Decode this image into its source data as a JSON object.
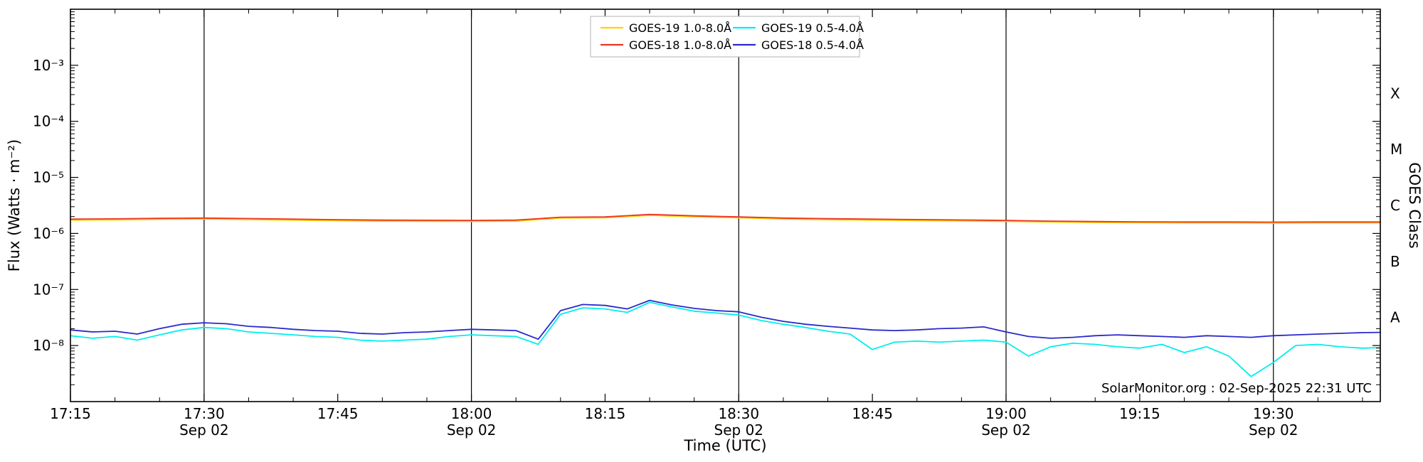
{
  "colors": {
    "background": "#ffffff",
    "axis": "#000000",
    "day_grid": "#000000",
    "legend_border": "#b3b3b3",
    "goes19_long": "#ffd200",
    "goes18_long": "#ee3322",
    "goes19_short": "#00eeee",
    "goes18_short": "#2929cc"
  },
  "chart_data": {
    "type": "line",
    "title": "",
    "xlabel": "Time (UTC)",
    "ylabel": "Flux (Watts · m⁻²)",
    "ylabel_right": "GOES Class",
    "annotation": "SolarMonitor.org : 02-Sep-2025 22:31 UTC",
    "x_unit": "minutes after 17:15 UTC",
    "xlim_minutes": [
      0,
      147
    ],
    "x_minor_step_min": 5,
    "ylim": [
      1e-09,
      0.01
    ],
    "yscale": "log",
    "grid": "vertical-day-lines-only",
    "legend_position": "top-center",
    "x_ticks": [
      {
        "min": 0,
        "label": "17:15",
        "grid": false
      },
      {
        "min": 15,
        "label": "17:30",
        "grid": true,
        "day": "Sep 02"
      },
      {
        "min": 30,
        "label": "17:45",
        "grid": false
      },
      {
        "min": 45,
        "label": "18:00",
        "grid": true,
        "day": "Sep 02"
      },
      {
        "min": 60,
        "label": "18:15",
        "grid": false
      },
      {
        "min": 75,
        "label": "18:30",
        "grid": true,
        "day": "Sep 02"
      },
      {
        "min": 90,
        "label": "18:45",
        "grid": false
      },
      {
        "min": 105,
        "label": "19:00",
        "grid": true,
        "day": "Sep 02"
      },
      {
        "min": 120,
        "label": "19:15",
        "grid": false
      },
      {
        "min": 135,
        "label": "19:30",
        "grid": true,
        "day": "Sep 02"
      }
    ],
    "y_ticks": [
      {
        "value": 0.001,
        "label": "10⁻³"
      },
      {
        "value": 0.0001,
        "label": "10⁻⁴"
      },
      {
        "value": 1e-05,
        "label": "10⁻⁵"
      },
      {
        "value": 1e-06,
        "label": "10⁻⁶"
      },
      {
        "value": 1e-07,
        "label": "10⁻⁷"
      },
      {
        "value": 1e-08,
        "label": "10⁻⁸"
      }
    ],
    "goes_class_labels": [
      {
        "label": "X",
        "value": 0.000316
      },
      {
        "label": "M",
        "value": 3.16e-05
      },
      {
        "label": "C",
        "value": 3.16e-06
      },
      {
        "label": "B",
        "value": 3.16e-07
      },
      {
        "label": "A",
        "value": 3.16e-08
      }
    ],
    "series": [
      {
        "name": "GOES-19 1.0-8.0Å",
        "color": "#ffd200",
        "x": [
          0,
          5,
          10,
          15,
          20,
          25,
          30,
          35,
          40,
          45,
          50,
          55,
          60,
          65,
          70,
          75,
          80,
          85,
          90,
          95,
          100,
          105,
          110,
          115,
          120,
          125,
          130,
          135,
          140,
          145,
          147
        ],
        "y": [
          1.73e-06,
          1.75e-06,
          1.79e-06,
          1.81e-06,
          1.77e-06,
          1.73e-06,
          1.69e-06,
          1.66e-06,
          1.65e-06,
          1.64e-06,
          1.66e-06,
          1.88e-06,
          1.9e-06,
          2.1e-06,
          1.98e-06,
          1.9e-06,
          1.81e-06,
          1.76e-06,
          1.73e-06,
          1.7e-06,
          1.67e-06,
          1.64e-06,
          1.6e-06,
          1.57e-06,
          1.55e-06,
          1.54e-06,
          1.54e-06,
          1.53e-06,
          1.54e-06,
          1.54e-06,
          1.54e-06
        ]
      },
      {
        "name": "GOES-18 1.0-8.0Å",
        "color": "#ee3322",
        "x": [
          0,
          5,
          10,
          15,
          20,
          25,
          30,
          35,
          40,
          45,
          50,
          55,
          60,
          65,
          70,
          75,
          80,
          85,
          90,
          95,
          100,
          105,
          110,
          115,
          120,
          125,
          130,
          135,
          140,
          145,
          147
        ],
        "y": [
          1.8e-06,
          1.82e-06,
          1.86e-06,
          1.88e-06,
          1.84e-06,
          1.8e-06,
          1.76e-06,
          1.73e-06,
          1.72e-06,
          1.71e-06,
          1.73e-06,
          1.95e-06,
          1.97e-06,
          2.18e-06,
          2.06e-06,
          1.97e-06,
          1.88e-06,
          1.83e-06,
          1.8e-06,
          1.77e-06,
          1.74e-06,
          1.71e-06,
          1.66e-06,
          1.63e-06,
          1.61e-06,
          1.6e-06,
          1.6e-06,
          1.59e-06,
          1.6e-06,
          1.6e-06,
          1.6e-06
        ]
      },
      {
        "name": "GOES-19 0.5-4.0Å",
        "color": "#00eeee",
        "x": [
          0,
          2.5,
          5,
          7.5,
          10,
          12.5,
          15,
          17.5,
          20,
          22.5,
          25,
          27.5,
          30,
          32.5,
          35,
          37.5,
          40,
          42.5,
          45,
          47.5,
          50,
          52.5,
          55,
          57.5,
          60,
          62.5,
          65,
          67.5,
          70,
          72.5,
          75,
          77.5,
          80,
          82.5,
          85,
          87.5,
          90,
          92.5,
          95,
          97.5,
          100,
          102.5,
          105,
          107.5,
          110,
          112.5,
          115,
          117.5,
          120,
          122.5,
          125,
          127.5,
          130,
          132.5,
          135,
          137.5,
          140,
          142.5,
          145,
          147
        ],
        "y": [
          1.5e-08,
          1.35e-08,
          1.45e-08,
          1.25e-08,
          1.55e-08,
          1.9e-08,
          2.1e-08,
          2e-08,
          1.75e-08,
          1.65e-08,
          1.55e-08,
          1.45e-08,
          1.4e-08,
          1.25e-08,
          1.2e-08,
          1.25e-08,
          1.3e-08,
          1.45e-08,
          1.55e-08,
          1.5e-08,
          1.45e-08,
          1.05e-08,
          3.6e-08,
          4.7e-08,
          4.5e-08,
          3.9e-08,
          5.9e-08,
          4.9e-08,
          4.1e-08,
          3.8e-08,
          3.5e-08,
          2.8e-08,
          2.4e-08,
          2.1e-08,
          1.8e-08,
          1.6e-08,
          8.5e-09,
          1.15e-08,
          1.2e-08,
          1.15e-08,
          1.2e-08,
          1.25e-08,
          1.15e-08,
          6.5e-09,
          9.5e-09,
          1.1e-08,
          1.05e-08,
          9.5e-09,
          9e-09,
          1.05e-08,
          7.5e-09,
          9.5e-09,
          6.5e-09,
          2.8e-09,
          5e-09,
          1e-08,
          1.05e-08,
          9.5e-09,
          9e-09,
          9.2e-09
        ]
      },
      {
        "name": "GOES-18 0.5-4.0Å",
        "color": "#2929cc",
        "x": [
          0,
          2.5,
          5,
          7.5,
          10,
          12.5,
          15,
          17.5,
          20,
          22.5,
          25,
          27.5,
          30,
          32.5,
          35,
          37.5,
          40,
          42.5,
          45,
          47.5,
          50,
          52.5,
          55,
          57.5,
          60,
          62.5,
          65,
          67.5,
          70,
          72.5,
          75,
          77.5,
          80,
          82.5,
          85,
          87.5,
          90,
          92.5,
          95,
          97.5,
          100,
          102.5,
          105,
          107.5,
          110,
          112.5,
          115,
          117.5,
          120,
          122.5,
          125,
          127.5,
          130,
          132.5,
          135,
          137.5,
          140,
          142.5,
          145,
          147
        ],
        "y": [
          1.9e-08,
          1.75e-08,
          1.8e-08,
          1.6e-08,
          2e-08,
          2.4e-08,
          2.55e-08,
          2.45e-08,
          2.2e-08,
          2.1e-08,
          1.95e-08,
          1.85e-08,
          1.8e-08,
          1.65e-08,
          1.6e-08,
          1.7e-08,
          1.75e-08,
          1.85e-08,
          1.95e-08,
          1.9e-08,
          1.85e-08,
          1.3e-08,
          4.2e-08,
          5.4e-08,
          5.2e-08,
          4.5e-08,
          6.4e-08,
          5.3e-08,
          4.6e-08,
          4.2e-08,
          4e-08,
          3.2e-08,
          2.7e-08,
          2.4e-08,
          2.2e-08,
          2.05e-08,
          1.9e-08,
          1.85e-08,
          1.9e-08,
          2e-08,
          2.05e-08,
          2.15e-08,
          1.75e-08,
          1.45e-08,
          1.35e-08,
          1.4e-08,
          1.5e-08,
          1.55e-08,
          1.5e-08,
          1.45e-08,
          1.4e-08,
          1.5e-08,
          1.45e-08,
          1.4e-08,
          1.5e-08,
          1.55e-08,
          1.6e-08,
          1.65e-08,
          1.7e-08,
          1.72e-08
        ]
      }
    ]
  }
}
